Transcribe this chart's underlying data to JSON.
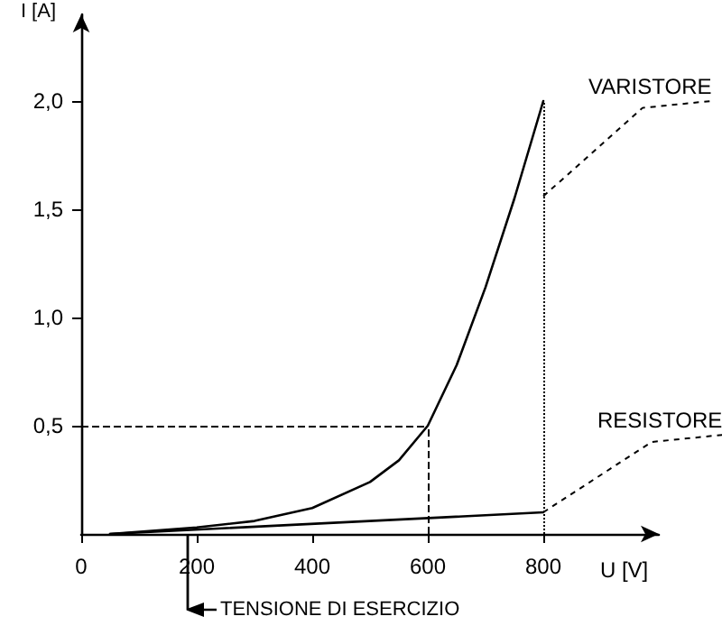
{
  "chart_data": {
    "type": "line",
    "xlabel": "U [V]",
    "ylabel": "I [A]",
    "xlim": [
      0,
      1000
    ],
    "ylim": [
      0,
      2.4
    ],
    "xticks": [
      0,
      200,
      400,
      600,
      800
    ],
    "yticks": [
      {
        "value": 0.5,
        "label": "0,5"
      },
      {
        "value": 1.0,
        "label": "1,0"
      },
      {
        "value": 1.5,
        "label": "1,5"
      },
      {
        "value": 2.0,
        "label": "2,0"
      }
    ],
    "series": [
      {
        "name": "VARISTORE",
        "color": "#000000",
        "x": [
          50,
          200,
          300,
          400,
          500,
          550,
          600,
          650,
          700,
          750,
          800
        ],
        "values": [
          0,
          0.03,
          0.06,
          0.12,
          0.24,
          0.34,
          0.5,
          0.78,
          1.14,
          1.55,
          2.0
        ]
      },
      {
        "name": "RESISTORE",
        "color": "#000000",
        "x": [
          50,
          800
        ],
        "values": [
          0,
          0.1
        ]
      }
    ],
    "ref_lines": [
      {
        "axis": "y",
        "value": 0.5,
        "line_style": "dashed"
      },
      {
        "axis": "x",
        "value": 600,
        "line_style": "dashed"
      },
      {
        "axis": "x",
        "value": 800,
        "line_style": "dotted"
      }
    ],
    "annotations": [
      "TENSIONE DI ESERCIZIO"
    ],
    "grid": false,
    "legend": false,
    "marker": "none",
    "line_style": "solid"
  }
}
